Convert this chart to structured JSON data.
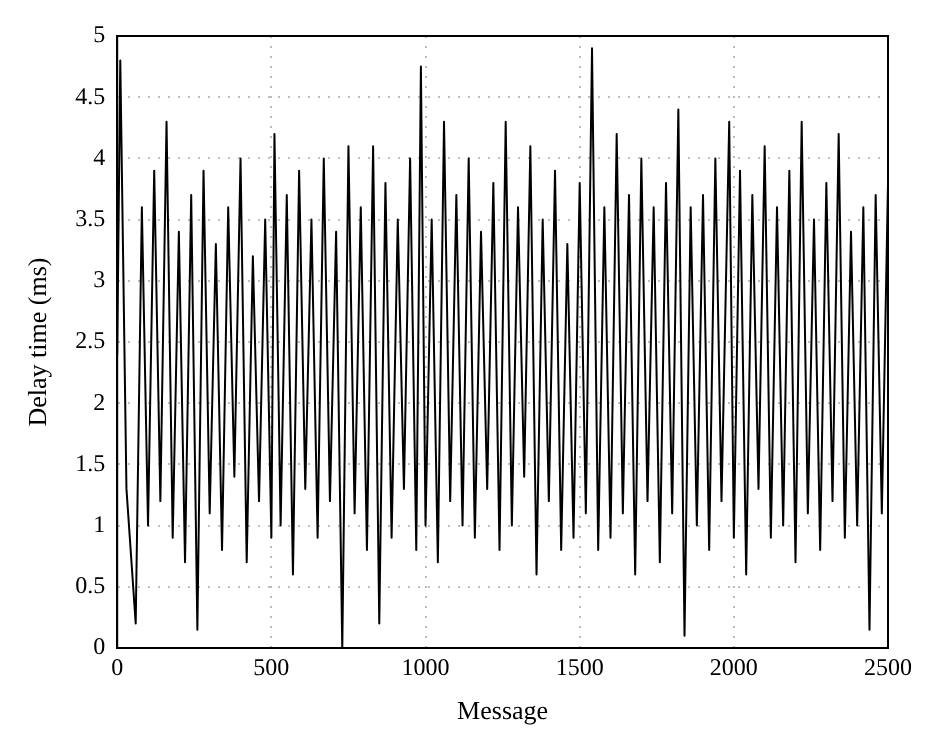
{
  "chart_data": {
    "type": "line",
    "xlabel": "Message",
    "ylabel": "Delay time (ms)",
    "xlim": [
      0,
      2500
    ],
    "xticks": [
      0,
      500,
      1000,
      1500,
      2000,
      2500
    ],
    "ylim": [
      0,
      5
    ],
    "yticks": [
      0,
      0.5,
      1,
      1.5,
      2,
      2.5,
      3,
      3.5,
      4,
      4.5,
      5
    ],
    "grid": true,
    "marker": "none",
    "line_style": "solid",
    "x": [
      0,
      10,
      30,
      60,
      80,
      100,
      120,
      140,
      160,
      180,
      200,
      220,
      240,
      260,
      280,
      300,
      320,
      340,
      360,
      380,
      400,
      420,
      440,
      460,
      480,
      500,
      510,
      530,
      550,
      570,
      590,
      610,
      630,
      650,
      670,
      690,
      710,
      730,
      750,
      770,
      790,
      810,
      830,
      850,
      870,
      890,
      910,
      930,
      950,
      970,
      985,
      1000,
      1020,
      1040,
      1060,
      1080,
      1100,
      1120,
      1140,
      1160,
      1180,
      1200,
      1220,
      1240,
      1260,
      1280,
      1300,
      1320,
      1340,
      1360,
      1380,
      1400,
      1420,
      1440,
      1460,
      1480,
      1500,
      1520,
      1540,
      1560,
      1580,
      1600,
      1620,
      1640,
      1660,
      1680,
      1700,
      1720,
      1740,
      1760,
      1780,
      1800,
      1820,
      1840,
      1860,
      1880,
      1900,
      1920,
      1940,
      1960,
      1985,
      2000,
      2020,
      2040,
      2060,
      2080,
      2100,
      2120,
      2140,
      2160,
      2180,
      2200,
      2220,
      2240,
      2260,
      2280,
      2300,
      2320,
      2340,
      2360,
      2380,
      2400,
      2420,
      2440,
      2460,
      2480,
      2500
    ],
    "series": [
      {
        "color": "#000000",
        "values": [
          2.4,
          4.8,
          1.3,
          0.2,
          3.6,
          1.0,
          3.9,
          1.2,
          4.3,
          0.9,
          3.4,
          0.7,
          3.7,
          0.15,
          3.9,
          1.1,
          3.3,
          0.8,
          3.6,
          1.4,
          4.0,
          0.7,
          3.2,
          1.2,
          3.5,
          0.9,
          4.2,
          1.0,
          3.7,
          0.6,
          3.9,
          1.3,
          3.5,
          0.9,
          4.0,
          1.2,
          3.4,
          0.0,
          4.1,
          1.1,
          3.6,
          0.8,
          4.1,
          0.2,
          3.8,
          0.9,
          3.5,
          1.3,
          4.0,
          0.8,
          4.75,
          1.0,
          3.5,
          0.7,
          4.3,
          1.2,
          3.7,
          1.0,
          4.0,
          0.9,
          3.4,
          1.3,
          3.8,
          0.8,
          4.3,
          1.0,
          3.6,
          1.4,
          4.1,
          0.6,
          3.5,
          1.2,
          3.9,
          0.8,
          3.3,
          0.9,
          3.8,
          1.1,
          4.9,
          0.8,
          3.6,
          0.9,
          4.2,
          1.1,
          3.7,
          0.6,
          4.0,
          1.2,
          3.6,
          0.7,
          3.8,
          1.1,
          4.4,
          0.1,
          3.6,
          1.0,
          3.7,
          0.8,
          4.0,
          1.2,
          4.3,
          0.9,
          3.9,
          0.6,
          3.7,
          1.3,
          4.1,
          0.9,
          3.6,
          1.0,
          3.9,
          0.7,
          4.3,
          1.1,
          3.5,
          0.8,
          3.8,
          1.2,
          4.2,
          0.9,
          3.4,
          1.0,
          3.6,
          0.15,
          3.7,
          1.1,
          3.8
        ]
      }
    ]
  }
}
